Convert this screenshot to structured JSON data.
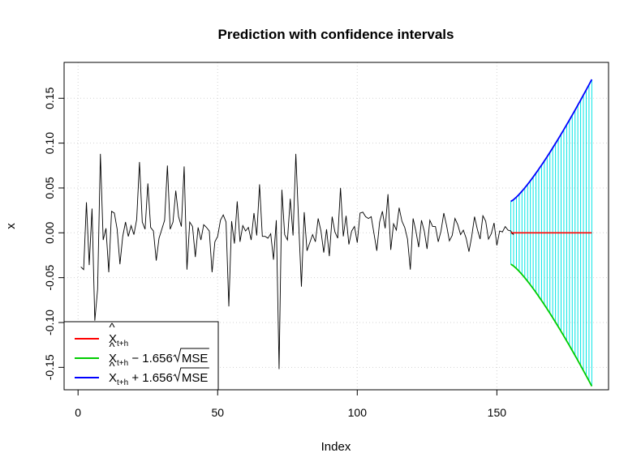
{
  "chart_data": {
    "type": "line",
    "title": "Prediction with confidence intervals",
    "xlabel": "Index",
    "ylabel": "x",
    "xlim": [
      -5,
      190
    ],
    "ylim": [
      -0.175,
      0.19
    ],
    "x_ticks": [
      0,
      50,
      100,
      150
    ],
    "x_tick_labels": [
      "0",
      "50",
      "100",
      "150"
    ],
    "y_ticks": [
      -0.15,
      -0.1,
      -0.05,
      0.0,
      0.05,
      0.1,
      0.15
    ],
    "y_tick_labels": [
      "-0.15",
      "-0.10",
      "-0.05",
      "0.00",
      "0.05",
      "0.10",
      "0.15"
    ],
    "grid": true,
    "legend_position": "bottom-left",
    "colors": {
      "observed": "#000000",
      "prediction": "#ff0000",
      "lower": "#00cc00",
      "upper": "#0000ff",
      "interval": "#00e5e5",
      "grid": "#d3d3d3"
    },
    "observed": {
      "x_start": 1,
      "values": [
        -0.038,
        -0.041,
        0.034,
        -0.036,
        0.027,
        -0.098,
        -0.063,
        0.088,
        -0.008,
        0.005,
        -0.044,
        0.024,
        0.022,
        0.004,
        -0.035,
        -0.004,
        0.012,
        -0.004,
        0.008,
        -0.002,
        0.015,
        0.079,
        0.012,
        0.004,
        0.055,
        0.006,
        0.002,
        -0.031,
        -0.006,
        0.004,
        0.014,
        0.075,
        0.004,
        0.012,
        0.047,
        0.018,
        0.007,
        0.074,
        -0.041,
        0.012,
        0.007,
        -0.027,
        0.006,
        -0.008,
        0.009,
        0.006,
        0.002,
        -0.044,
        -0.01,
        -0.004,
        0.014,
        0.02,
        0.012,
        -0.082,
        0.013,
        -0.012,
        0.035,
        -0.01,
        0.008,
        0.002,
        0.006,
        -0.008,
        0.022,
        -0.003,
        0.054,
        -0.004,
        -0.004,
        -0.006,
        -0.001,
        -0.03,
        0.014,
        -0.152,
        0.048,
        -0.002,
        -0.008,
        0.038,
        -0.003,
        0.088,
        0.012,
        -0.06,
        0.023,
        -0.02,
        -0.011,
        -0.002,
        -0.01,
        0.016,
        0.002,
        -0.022,
        0.004,
        -0.026,
        0.018,
        0.001,
        -0.006,
        0.05,
        -0.004,
        0.019,
        -0.013,
        0.002,
        0.007,
        -0.011,
        0.022,
        0.023,
        0.018,
        0.016,
        0.018,
        -0.001,
        -0.02,
        0.012,
        0.024,
        0.005,
        0.043,
        -0.019,
        0.01,
        0.003,
        0.028,
        0.013,
        0.006,
        -0.007,
        -0.041,
        0.016,
        0.002,
        -0.016,
        0.014,
        0.002,
        -0.018,
        0.014,
        0.007,
        0.007,
        -0.01,
        0.002,
        0.022,
        0.008,
        -0.009,
        -0.003,
        0.016,
        0.009,
        -0.002,
        0.003,
        -0.006,
        -0.021,
        -0.004,
        0.018,
        0.004,
        -0.007,
        0.019,
        0.013,
        -0.007,
        -0.001,
        0.011,
        -0.014,
        0.002,
        0.001,
        0.007,
        0.003,
        0.002,
        -0.002
      ]
    },
    "forecast": {
      "x_start": 155,
      "x_end": 184,
      "prediction": 0.0,
      "upper_start": 0.035,
      "upper_end": 0.171,
      "lower_start": -0.035,
      "lower_end": -0.171
    },
    "legend": [
      {
        "hat": "^",
        "base": "X",
        "sub": "t+h",
        "suffix": ""
      },
      {
        "hat": "^",
        "base": "X",
        "sub": "t+h",
        "suffix": " − 1.656",
        "mse": "MSE"
      },
      {
        "hat": "^",
        "base": "X",
        "sub": "t+h",
        "suffix": " + 1.656",
        "mse": "MSE"
      }
    ]
  }
}
